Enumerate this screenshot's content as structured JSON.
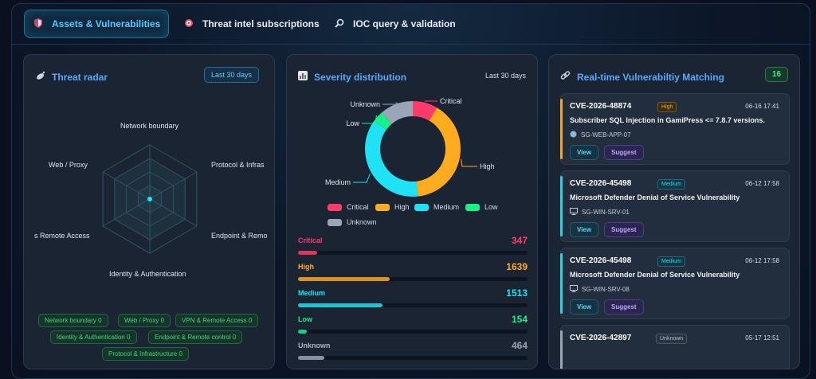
{
  "tabs": [
    {
      "label": "Assets & Vulnerabilities",
      "icon": "shield-icon",
      "active": true
    },
    {
      "label": "Threat intel subscriptions",
      "icon": "target-icon",
      "active": false
    },
    {
      "label": "IOC query & validation",
      "icon": "magnifier-icon",
      "active": false
    }
  ],
  "radar": {
    "title": "Threat radar",
    "range": "Last 30 days",
    "axes": [
      "Network boundary",
      "Protocol & Infrastructure",
      "Endpoint & Remote control",
      "Identity & Authentication",
      "VPN & Remote Access",
      "Web / Proxy"
    ],
    "axis_labels_visible": [
      "Network boundary",
      "Protocol & Infras",
      "Endpoint & Remo",
      "Identity & Authentication",
      "s Remote Access",
      "Web / Proxy"
    ],
    "tags": [
      "Network boundary 0",
      "Web / Proxy 0",
      "VPN & Remote Access 0",
      "Identity & Authentication 0",
      "Endpoint & Remote control 0",
      "Protocol & Infrastructure 0"
    ]
  },
  "severity": {
    "title": "Severity distribution",
    "range": "Last 30 days",
    "colors": {
      "Critical": "#ff3b6b",
      "High": "#ffab1f",
      "Medium": "#1fe3f5",
      "Low": "#18f08a",
      "Unknown": "#9aa6b8"
    },
    "rows": [
      {
        "name": "Critical",
        "value": "347"
      },
      {
        "name": "High",
        "value": "1639"
      },
      {
        "name": "Medium",
        "value": "1513"
      },
      {
        "name": "Low",
        "value": "154"
      },
      {
        "name": "Unknown",
        "value": "464"
      }
    ]
  },
  "chart_data": {
    "type": "pie",
    "categories": [
      "Critical",
      "High",
      "Medium",
      "Low",
      "Unknown"
    ],
    "values": [
      347,
      1639,
      1513,
      154,
      464
    ],
    "legend_position": "bottom"
  },
  "matching": {
    "title": "Real-time Vulnerabiltiy Matching",
    "count": "16",
    "view_label": "View",
    "suggest_label": "Suggest",
    "cards": [
      {
        "cve": "CVE-2026-48874",
        "severity": "High",
        "time": "06-16 17:41",
        "desc": "Subscriber SQL Injection in GamiPress <= 7.8.7 versions.",
        "host": "SG-WEB-APP-07",
        "host_icon": "globe-icon",
        "accent": "#f2a623"
      },
      {
        "cve": "CVE-2026-45498",
        "severity": "Medium",
        "time": "06-12 17:58",
        "desc": "Microsoft Defender Denial of Service Vulnerability",
        "host": "SG-WIN-SRV-01",
        "host_icon": "monitor-icon",
        "accent": "#1fd6ec"
      },
      {
        "cve": "CVE-2026-45498",
        "severity": "Medium",
        "time": "06-12 17:58",
        "desc": "Microsoft Defender Denial of Service Vulnerability",
        "host": "SG-WIN-SRV-08",
        "host_icon": "monitor-icon",
        "accent": "#1fd6ec"
      },
      {
        "cve": "CVE-2026-42897",
        "severity": "Unknown",
        "time": "05-17 12:51",
        "desc": "",
        "host": "",
        "host_icon": "",
        "accent": "#9aa6b8"
      }
    ]
  }
}
